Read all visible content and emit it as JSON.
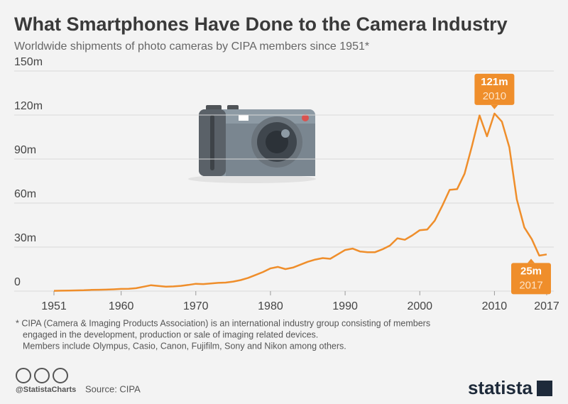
{
  "chart_data": {
    "type": "line",
    "title": "What Smartphones Have Done to the Camera Industry",
    "subtitle": "Worldwide shipments of photo cameras by CIPA members since 1951*",
    "x": [
      1951,
      1952,
      1953,
      1954,
      1955,
      1956,
      1957,
      1958,
      1959,
      1960,
      1961,
      1962,
      1963,
      1964,
      1965,
      1966,
      1967,
      1968,
      1969,
      1970,
      1971,
      1972,
      1973,
      1974,
      1975,
      1976,
      1977,
      1978,
      1979,
      1980,
      1981,
      1982,
      1983,
      1984,
      1985,
      1986,
      1987,
      1988,
      1989,
      1990,
      1991,
      1992,
      1993,
      1994,
      1995,
      1996,
      1997,
      1998,
      1999,
      2000,
      2001,
      2002,
      2003,
      2004,
      2005,
      2006,
      2007,
      2008,
      2009,
      2010,
      2011,
      2012,
      2013,
      2014,
      2015,
      2016,
      2017
    ],
    "values": [
      0.2,
      0.3,
      0.4,
      0.5,
      0.6,
      0.8,
      0.9,
      1.0,
      1.2,
      1.5,
      1.6,
      2.0,
      3.0,
      4.0,
      3.5,
      3.0,
      3.2,
      3.6,
      4.2,
      5.0,
      4.8,
      5.2,
      5.6,
      5.8,
      6.5,
      7.5,
      9,
      11,
      13,
      15.5,
      16.5,
      15,
      16,
      18,
      20,
      21.5,
      22.5,
      22,
      25,
      28,
      29,
      27,
      26.5,
      26.5,
      28.5,
      31,
      36,
      35,
      38,
      41.5,
      42,
      48,
      58,
      69,
      69.5,
      80,
      99,
      119.7,
      105.5,
      121,
      115.5,
      98,
      62.5,
      43.4,
      35.4,
      24.2,
      25
    ],
    "color": "#ef8e2b",
    "xlim": [
      1951,
      2017
    ],
    "xticks": [
      1951,
      1960,
      1970,
      1980,
      1990,
      2000,
      2010,
      2017
    ],
    "ylim": [
      0,
      150
    ],
    "yticks": [
      0,
      {
        "value": 30,
        "label": "30m"
      },
      {
        "value": 60,
        "label": "60m"
      },
      {
        "value": 90,
        "label": "90m"
      },
      {
        "value": 120,
        "label": "120m"
      },
      {
        "value": 150,
        "label": "150m"
      }
    ],
    "grid": true,
    "annotations": [
      {
        "x": 2010,
        "value": 121,
        "label": "121m"
      },
      {
        "x": 2017,
        "value": 25,
        "label": "25m"
      }
    ],
    "footnote": [
      "* CIPA (Camera & Imaging Products Association) is an international industry group consisting of members",
      "engaged in the development, production or sale of imaging related devices.",
      "Members include Olympus, Casio, Canon, Fujifilm, Sony and Nikon among others."
    ],
    "handle": "@StatistaCharts",
    "source": "Source: CIPA",
    "brand": "statista"
  }
}
